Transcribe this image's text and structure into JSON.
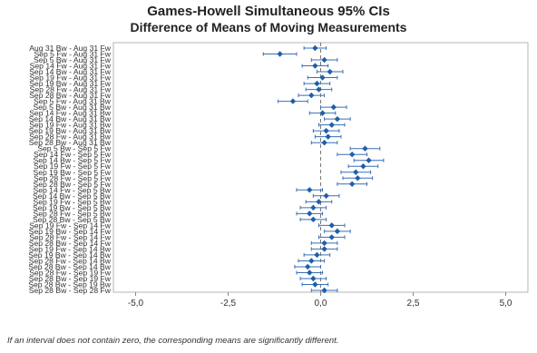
{
  "chart_data": {
    "type": "interval-plot",
    "title": "Games-Howell Simultaneous 95% CIs",
    "subtitle": "Difference of Means of Moving Measurements",
    "xlim": [
      -5.6,
      5.6
    ],
    "xticks": [
      "-5,0",
      "-2,5",
      "0,0",
      "2,5",
      "5,0"
    ],
    "xtick_values": [
      -5.0,
      -2.5,
      0.0,
      2.5,
      5.0
    ],
    "reference_line": 0,
    "grid": false,
    "point_color": "#1f5fa8",
    "interval_color": "#3a6fb5",
    "rows": [
      {
        "label": "Aug 31 Bw - Aug 31 Fw",
        "estimate": -0.15,
        "lower": -0.45,
        "upper": 0.15
      },
      {
        "label": "Sep 5 Fw - Aug 31 Fw",
        "estimate": -1.1,
        "lower": -1.55,
        "upper": -0.65
      },
      {
        "label": "Sep 5 Bw - Aug 31 Fw",
        "estimate": 0.1,
        "lower": -0.25,
        "upper": 0.45
      },
      {
        "label": "Sep 14 Fw - Aug 31 Fw",
        "estimate": -0.15,
        "lower": -0.5,
        "upper": 0.2
      },
      {
        "label": "Sep 14 Bw - Aug 31 Fw",
        "estimate": 0.25,
        "lower": -0.1,
        "upper": 0.6
      },
      {
        "label": "Sep 19 Fw - Aug 31 Fw",
        "estimate": 0.05,
        "lower": -0.35,
        "upper": 0.45
      },
      {
        "label": "Sep 19 Bw - Aug 31 Fw",
        "estimate": -0.1,
        "lower": -0.45,
        "upper": 0.25
      },
      {
        "label": "Sep 28 Fw - Aug 31 Fw",
        "estimate": -0.05,
        "lower": -0.4,
        "upper": 0.3
      },
      {
        "label": "Sep 28 Bw - Aug 31 Fw",
        "estimate": -0.25,
        "lower": -0.6,
        "upper": 0.1
      },
      {
        "label": "Sep 5 Fw - Aug 31 Bw",
        "estimate": -0.75,
        "lower": -1.15,
        "upper": -0.35
      },
      {
        "label": "Sep 5 Bw - Aug 31 Bw",
        "estimate": 0.35,
        "lower": 0.0,
        "upper": 0.7
      },
      {
        "label": "Sep 14 Fw - Aug 31 Bw",
        "estimate": 0.05,
        "lower": -0.3,
        "upper": 0.4
      },
      {
        "label": "Sep 14 Bw - Aug 31 Bw",
        "estimate": 0.45,
        "lower": 0.1,
        "upper": 0.8
      },
      {
        "label": "Sep 19 Fw - Aug 31 Bw",
        "estimate": 0.3,
        "lower": -0.05,
        "upper": 0.65
      },
      {
        "label": "Sep 19 Bw - Aug 31 Bw",
        "estimate": 0.15,
        "lower": -0.2,
        "upper": 0.5
      },
      {
        "label": "Sep 28 Fw - Aug 31 Bw",
        "estimate": 0.2,
        "lower": -0.15,
        "upper": 0.55
      },
      {
        "label": "Sep 28 Bw - Aug 31 Bw",
        "estimate": 0.1,
        "lower": -0.25,
        "upper": 0.45
      },
      {
        "label": "Sep 5 Bw - Sep 5 Fw",
        "estimate": 1.2,
        "lower": 0.8,
        "upper": 1.6
      },
      {
        "label": "Sep 14 Fw - Sep 5 Fw",
        "estimate": 0.85,
        "lower": 0.45,
        "upper": 1.25
      },
      {
        "label": "Sep 14 Bw - Sep 5 Fw",
        "estimate": 1.3,
        "lower": 0.9,
        "upper": 1.7
      },
      {
        "label": "Sep 19 Fw - Sep 5 Fw",
        "estimate": 1.15,
        "lower": 0.75,
        "upper": 1.55
      },
      {
        "label": "Sep 19 Bw - Sep 5 Fw",
        "estimate": 0.95,
        "lower": 0.55,
        "upper": 1.35
      },
      {
        "label": "Sep 28 Fw - Sep 5 Fw",
        "estimate": 1.0,
        "lower": 0.6,
        "upper": 1.4
      },
      {
        "label": "Sep 28 Bw - Sep 5 Fw",
        "estimate": 0.85,
        "lower": 0.45,
        "upper": 1.25
      },
      {
        "label": "Sep 14 Fw - Sep 5 Bw",
        "estimate": -0.3,
        "lower": -0.65,
        "upper": 0.05
      },
      {
        "label": "Sep 14 Bw - Sep 5 Bw",
        "estimate": 0.15,
        "lower": -0.2,
        "upper": 0.5
      },
      {
        "label": "Sep 19 Fw - Sep 5 Bw",
        "estimate": -0.05,
        "lower": -0.4,
        "upper": 0.3
      },
      {
        "label": "Sep 19 Bw - Sep 5 Bw",
        "estimate": -0.2,
        "lower": -0.55,
        "upper": 0.15
      },
      {
        "label": "Sep 28 Fw - Sep 5 Bw",
        "estimate": -0.3,
        "lower": -0.65,
        "upper": 0.05
      },
      {
        "label": "Sep 28 Bw - Sep 5 Bw",
        "estimate": -0.2,
        "lower": -0.55,
        "upper": 0.15
      },
      {
        "label": "Sep 19 Fw - Sep 14 Fw",
        "estimate": 0.3,
        "lower": -0.05,
        "upper": 0.65
      },
      {
        "label": "Sep 19 Bw - Sep 14 Fw",
        "estimate": 0.45,
        "lower": 0.1,
        "upper": 0.8
      },
      {
        "label": "Sep 28 Fw - Sep 14 Fw",
        "estimate": 0.3,
        "lower": -0.05,
        "upper": 0.65
      },
      {
        "label": "Sep 28 Bw - Sep 14 Fw",
        "estimate": 0.1,
        "lower": -0.25,
        "upper": 0.45
      },
      {
        "label": "Sep 19 Fw - Sep 14 Bw",
        "estimate": 0.1,
        "lower": -0.25,
        "upper": 0.45
      },
      {
        "label": "Sep 19 Bw - Sep 14 Bw",
        "estimate": -0.1,
        "lower": -0.45,
        "upper": 0.25
      },
      {
        "label": "Sep 28 Fw - Sep 14 Bw",
        "estimate": -0.25,
        "lower": -0.6,
        "upper": 0.1
      },
      {
        "label": "Sep 28 Bw - Sep 14 Bw",
        "estimate": -0.35,
        "lower": -0.7,
        "upper": 0.0
      },
      {
        "label": "Sep 28 Fw - Sep 19 Fw",
        "estimate": -0.3,
        "lower": -0.65,
        "upper": 0.05
      },
      {
        "label": "Sep 28 Bw - Sep 19 Fw",
        "estimate": -0.2,
        "lower": -0.55,
        "upper": 0.15
      },
      {
        "label": "Sep 28 Bw - Sep 19 Bw",
        "estimate": -0.15,
        "lower": -0.5,
        "upper": 0.2
      },
      {
        "label": "Sep 28 Bw - Sep 28 Fw",
        "estimate": 0.1,
        "lower": -0.25,
        "upper": 0.45
      }
    ]
  },
  "footnote": "If an interval does not contain zero, the corresponding means are significantly different."
}
